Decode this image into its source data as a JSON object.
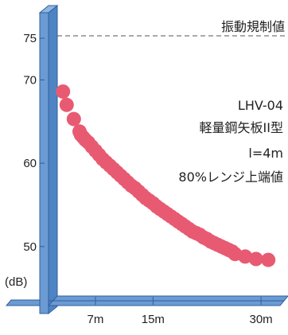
{
  "chart_data": {
    "type": "scatter",
    "title": "",
    "xlabel": "",
    "ylabel": "(dB)",
    "x_ticks": [
      {
        "value": 7,
        "label": "7m"
      },
      {
        "value": 15,
        "label": "15m"
      },
      {
        "value": 30,
        "label": "30m"
      }
    ],
    "y_ticks": [
      {
        "value": 50,
        "label": "50"
      },
      {
        "value": 60,
        "label": "60"
      },
      {
        "value": 70,
        "label": "70"
      },
      {
        "value": 75,
        "label": "75"
      }
    ],
    "regulation_line": {
      "value": 75,
      "label": "振動規制値"
    },
    "annotation": [
      "LHV-04",
      "軽量鋼矢板II型",
      "l=4m",
      "80%レンジ上端値"
    ],
    "series": [
      {
        "color": "#e85a72",
        "x": [
          2.5,
          3.0,
          4.0,
          4.8,
          5.0,
          5.3,
          5.6,
          6.0,
          6.5,
          7.0,
          7.5,
          8.0,
          8.5,
          9.0,
          9.5,
          10.0,
          10.5,
          11.0,
          11.5,
          12.0,
          12.5,
          13.0,
          13.5,
          14.0,
          14.5,
          15.0,
          15.5,
          16.0,
          16.5,
          17.0,
          17.5,
          18.0,
          18.5,
          19.0,
          19.5,
          20.0,
          20.5,
          21.0,
          21.5,
          22.0,
          22.5,
          23.0,
          23.5,
          24.0,
          24.5,
          25.0,
          25.5,
          26.0,
          26.4,
          27.8,
          29.3,
          31.0
        ],
        "y": [
          68.6,
          67.0,
          65.3,
          63.8,
          63.4,
          63.1,
          62.8,
          62.5,
          62.0,
          61.5,
          61.0,
          60.5,
          60.1,
          59.7,
          59.3,
          58.9,
          58.5,
          58.1,
          57.7,
          57.3,
          57.0,
          56.6,
          56.2,
          55.8,
          55.5,
          55.2,
          54.8,
          54.5,
          54.2,
          53.9,
          53.6,
          53.3,
          53.0,
          52.7,
          52.4,
          52.1,
          51.8,
          51.6,
          51.4,
          51.1,
          50.9,
          50.6,
          50.4,
          50.2,
          50.0,
          49.8,
          49.6,
          49.4,
          49.1,
          48.8,
          48.5,
          48.4
        ]
      }
    ]
  }
}
